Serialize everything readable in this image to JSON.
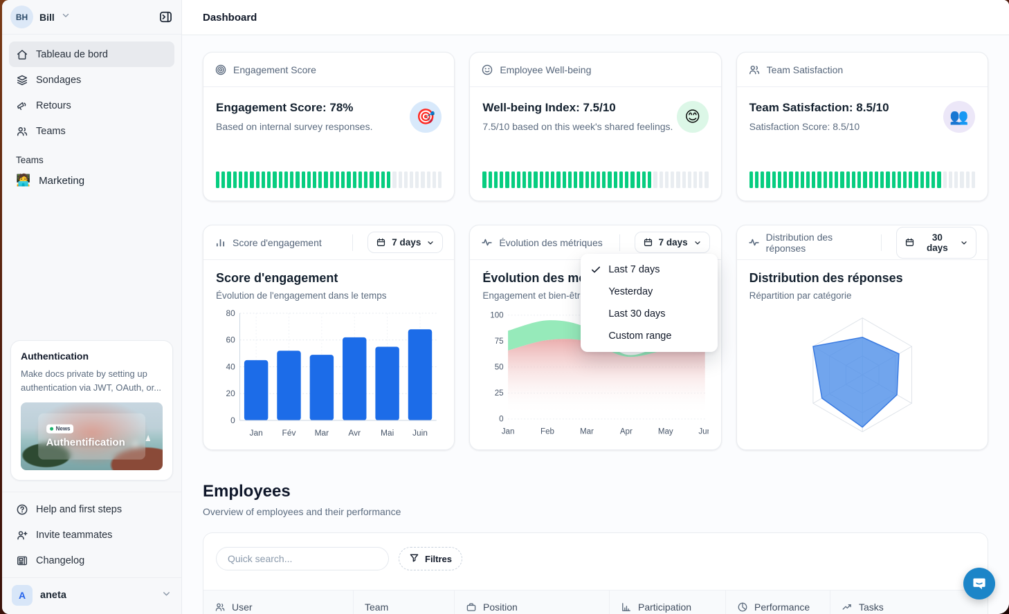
{
  "window": {
    "title": "Dashboard"
  },
  "sidebar": {
    "workspace": {
      "initials": "BH",
      "name": "Bill"
    },
    "nav": [
      {
        "label": "Tableau de bord",
        "icon": "home-icon",
        "active": true
      },
      {
        "label": "Sondages",
        "icon": "layers-icon",
        "active": false
      },
      {
        "label": "Retours",
        "icon": "megaphone-icon",
        "active": false
      },
      {
        "label": "Teams",
        "icon": "users-icon",
        "active": false
      }
    ],
    "teams_section": {
      "label": "Teams",
      "items": [
        {
          "label": "Marketing",
          "emoji": "🧑‍💻"
        }
      ]
    },
    "promo_card": {
      "title": "Authentication",
      "description": "Make docs private by setting up authentication via JWT, OAuth, or...",
      "badge": "News",
      "image_caption": "Authentification"
    },
    "footer_nav": [
      {
        "label": "Help and first steps",
        "icon": "help-icon"
      },
      {
        "label": "Invite teammates",
        "icon": "user-plus-icon"
      },
      {
        "label": "Changelog",
        "icon": "newspaper-icon"
      }
    ],
    "account": {
      "initial": "A",
      "name": "aneta"
    }
  },
  "kpis": [
    {
      "header": "Engagement Score",
      "title": "Engagement Score: 78%",
      "subtitle": "Based on internal survey responses.",
      "emoji": "🎯",
      "emoji_bg": "#d8e9fb",
      "progress_pct": 78
    },
    {
      "header": "Employee Well-being",
      "title": "Well-being Index: 7.5/10",
      "subtitle": "7.5/10 based on this week's shared feelings.",
      "emoji": "😊",
      "emoji_bg": "#dcf7e7",
      "progress_pct": 75
    },
    {
      "header": "Team Satisfaction",
      "title": "Team Satisfaction: 8.5/10",
      "subtitle": "Satisfaction Score: 8.5/10",
      "emoji": "👥",
      "emoji_bg": "#ece7f8",
      "progress_pct": 85
    }
  ],
  "charts": [
    {
      "label": "Score d'engagement",
      "range": "7 days"
    },
    {
      "label": "Évolution des métriques",
      "range": "7 days"
    },
    {
      "label": "Distribution des réponses",
      "range": "30 days"
    }
  ],
  "chart_data": [
    {
      "type": "bar",
      "title": "Score d'engagement",
      "subtitle": "Évolution de l'engagement dans le temps",
      "categories": [
        "Jan",
        "Fév",
        "Mar",
        "Avr",
        "Mai",
        "Juin"
      ],
      "values": [
        45,
        52,
        49,
        62,
        55,
        68
      ],
      "ylim": [
        0,
        80
      ],
      "yticks": [
        0,
        20,
        40,
        60,
        80
      ],
      "bar_color": "#1c6ce8",
      "grid": true,
      "legend": false
    },
    {
      "type": "area",
      "title": "Évolution des métriques",
      "subtitle": "Engagement et bien-être",
      "categories": [
        "Jan",
        "Feb",
        "Mar",
        "Apr",
        "May",
        "Jun"
      ],
      "series": [
        {
          "name": "engagement",
          "color": "#90e9b6",
          "values": [
            85,
            95,
            88,
            62,
            72,
            80
          ]
        },
        {
          "name": "bien-être",
          "color": "#e79f9f",
          "values": [
            66,
            76,
            75,
            60,
            66,
            70
          ]
        }
      ],
      "ylim": [
        0,
        100
      ],
      "yticks": [
        0,
        25,
        50,
        75,
        100
      ],
      "grid": true,
      "legend": false
    },
    {
      "type": "radar",
      "title": "Distribution des réponses",
      "subtitle": "Répartition par catégorie",
      "axes": 6,
      "values": [
        0.66,
        0.74,
        0.7,
        0.92,
        0.82,
        1.0
      ],
      "max": 1,
      "rings": 3,
      "fill": "#4e8ee8",
      "stroke": "#3577e0",
      "legend": false
    }
  ],
  "menu": {
    "items": [
      "Last 7 days",
      "Yesterday",
      "Last 30 days",
      "Custom range"
    ],
    "selected_index": 0
  },
  "employees": {
    "title": "Employees",
    "subtitle": "Overview of employees and their performance",
    "search_placeholder": "Quick search...",
    "filter_label": "Filtres",
    "columns": [
      {
        "label": "User",
        "icon": "users-icon"
      },
      {
        "label": "Team",
        "icon": ""
      },
      {
        "label": "Position",
        "icon": "briefcase-icon"
      },
      {
        "label": "Participation",
        "icon": "bar-chart-icon"
      },
      {
        "label": "Performance",
        "icon": "pie-chart-icon"
      },
      {
        "label": "Tasks",
        "icon": "trending-up-icon"
      }
    ]
  },
  "colors": {
    "progress_green": "#07cd80",
    "accent_blue": "#1c6ce8",
    "chat_button": "#1c85c8"
  }
}
